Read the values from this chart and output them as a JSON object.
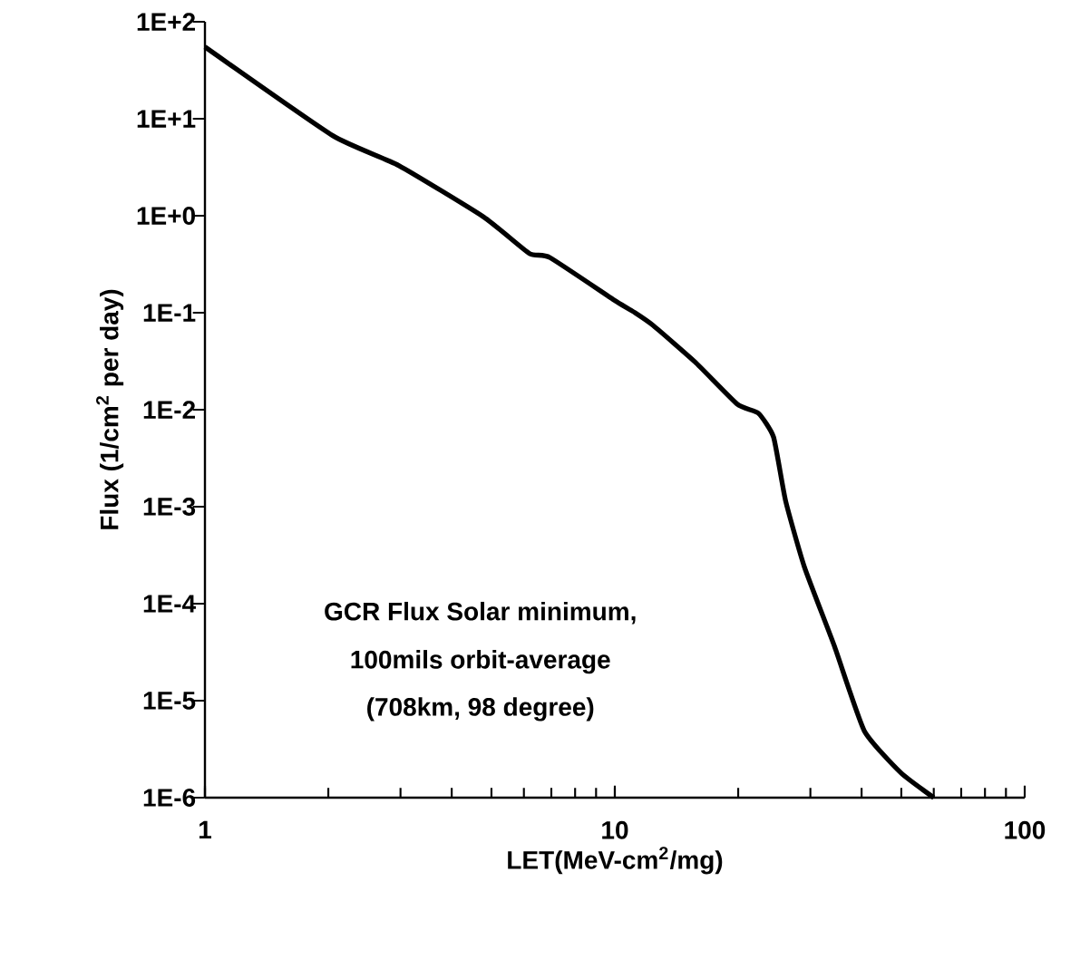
{
  "chart_data": {
    "type": "line",
    "xlabel": "LET(MeV-cm$^{2}$/mg)",
    "ylabel": "Flux (1/cm$^{2}$ per day)",
    "log": "xy",
    "grid": false,
    "marker": "none",
    "line_style": "solid",
    "xlim": [
      1,
      100
    ],
    "ylim": [
      1e-06,
      100
    ],
    "xticks": [
      1,
      10,
      100
    ],
    "yticks": [
      {
        "value": 100,
        "label": "1E+2"
      },
      {
        "value": 10,
        "label": "1E+1"
      },
      {
        "value": 1,
        "label": "1E+0"
      },
      {
        "value": 0.1,
        "label": "1E-1"
      },
      {
        "value": 0.01,
        "label": "1E-2"
      },
      {
        "value": 0.001,
        "label": "1E-3"
      },
      {
        "value": 0.0001,
        "label": "1E-4"
      },
      {
        "value": 1e-05,
        "label": "1E-5"
      },
      {
        "value": 1e-06,
        "label": "1E-6"
      }
    ],
    "annotations": [
      "GCR Flux Solar minimum,",
      "100mils orbit-average",
      "(708km, 98 degree)"
    ],
    "series": [
      {
        "color": "#000000",
        "x": [
          1,
          2.05,
          2.97,
          4.79,
          6.18,
          6.95,
          10.1,
          11.2,
          12.4,
          15.7,
          19.9,
          22.4,
          24.4,
          26.1,
          29,
          34.3,
          40.6,
          49.9,
          60
        ],
        "values": [
          55,
          6.7,
          3.3,
          0.97,
          0.41,
          0.37,
          0.13,
          0.1,
          0.074,
          0.031,
          0.0114,
          0.0092,
          0.0052,
          0.00115,
          0.00024,
          3.7e-05,
          4.9e-06,
          1.8e-06,
          1e-06
        ]
      }
    ]
  }
}
